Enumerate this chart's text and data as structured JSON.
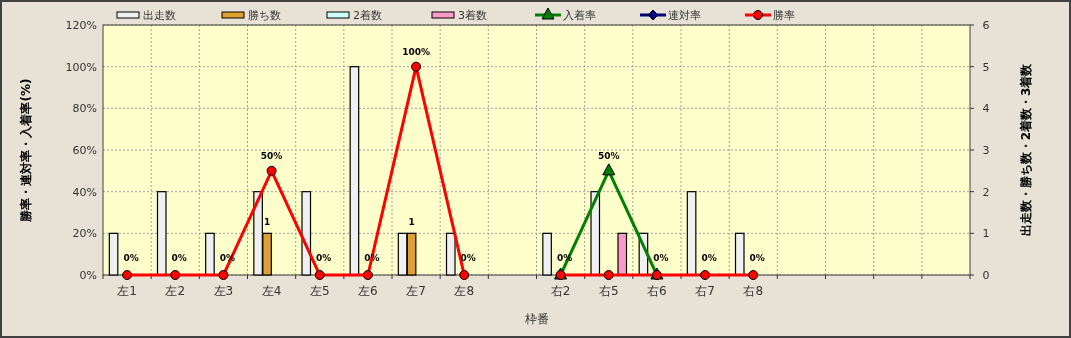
{
  "chart_data": {
    "type": "bar",
    "xlabel": "枠番",
    "ylabel": "勝率・連対率・入着率(%)",
    "y2label": "出走数・勝ち数・2着数・3着数",
    "categories": [
      "左1",
      "左2",
      "左3",
      "左4",
      "左5",
      "左6",
      "左7",
      "左8",
      null,
      "右2",
      "右5",
      "右6",
      "右7",
      "右8",
      null,
      null,
      null,
      null
    ],
    "series": [
      {
        "name": "出走数",
        "axis": "y2",
        "color": "#f0f0f0",
        "values": [
          1,
          2,
          1,
          2,
          2,
          5,
          1,
          1,
          null,
          1,
          2,
          1,
          2,
          1,
          null,
          null,
          null,
          null
        ]
      },
      {
        "name": "勝ち数",
        "axis": "y2",
        "color": "#e0a030",
        "values": [
          0,
          0,
          0,
          1,
          0,
          0,
          1,
          0,
          null,
          0,
          0,
          0,
          0,
          0,
          null,
          null,
          null,
          null
        ],
        "value_labels": [
          null,
          null,
          null,
          "1",
          null,
          null,
          "1",
          null,
          null,
          null,
          null,
          null,
          null,
          null,
          null,
          null,
          null,
          null
        ]
      },
      {
        "name": "2着数",
        "axis": "y2",
        "color": "#ccffff",
        "values": [
          0,
          0,
          0,
          0,
          0,
          0,
          0,
          0,
          null,
          0,
          0,
          0,
          0,
          0,
          null,
          null,
          null,
          null
        ]
      },
      {
        "name": "3着数",
        "axis": "y2",
        "color": "#ff99cc",
        "values": [
          0,
          0,
          0,
          0,
          0,
          0,
          0,
          0,
          null,
          0,
          1,
          0,
          0,
          0,
          null,
          null,
          null,
          null
        ]
      },
      {
        "name": "入着率",
        "type": "line",
        "color": "#008000",
        "marker": "triangle",
        "values": [
          null,
          null,
          null,
          null,
          null,
          null,
          null,
          null,
          null,
          0,
          50,
          0,
          null,
          null,
          null,
          null,
          null,
          null
        ],
        "value_labels": [
          null,
          null,
          null,
          null,
          null,
          null,
          null,
          null,
          null,
          null,
          "50%",
          null,
          null,
          null,
          null,
          null,
          null,
          null
        ]
      },
      {
        "name": "連対率",
        "type": "line",
        "color": "#000080",
        "marker": "diamond",
        "values": [
          null,
          null,
          null,
          null,
          null,
          null,
          null,
          null,
          null,
          null,
          null,
          null,
          null,
          null,
          null,
          null,
          null,
          null
        ]
      },
      {
        "name": "勝率",
        "type": "line",
        "color": "#ff0000",
        "marker": "circle",
        "values": [
          0,
          0,
          0,
          50,
          0,
          0,
          100,
          0,
          null,
          0,
          0,
          0,
          0,
          0,
          null,
          null,
          null,
          null
        ],
        "value_labels": [
          "0%",
          "0%",
          "0%",
          "50%",
          "0%",
          "0%",
          "100%",
          "0%",
          null,
          "0%",
          null,
          "0%",
          "0%",
          "0%",
          null,
          null,
          null,
          null
        ]
      }
    ],
    "ylim": [
      0,
      120
    ],
    "yticks": [
      {
        "value": 0,
        "label": "0%"
      },
      {
        "value": 20,
        "label": "20%"
      },
      {
        "value": 40,
        "label": "40%"
      },
      {
        "value": 60,
        "label": "60%"
      },
      {
        "value": 80,
        "label": "80%"
      },
      {
        "value": 100,
        "label": "100%"
      },
      {
        "value": 120,
        "label": "120%"
      }
    ],
    "y2lim": [
      0,
      6
    ],
    "y2ticks": [
      0,
      1,
      2,
      3,
      4,
      5,
      6
    ],
    "grid": true,
    "legend": "top"
  }
}
